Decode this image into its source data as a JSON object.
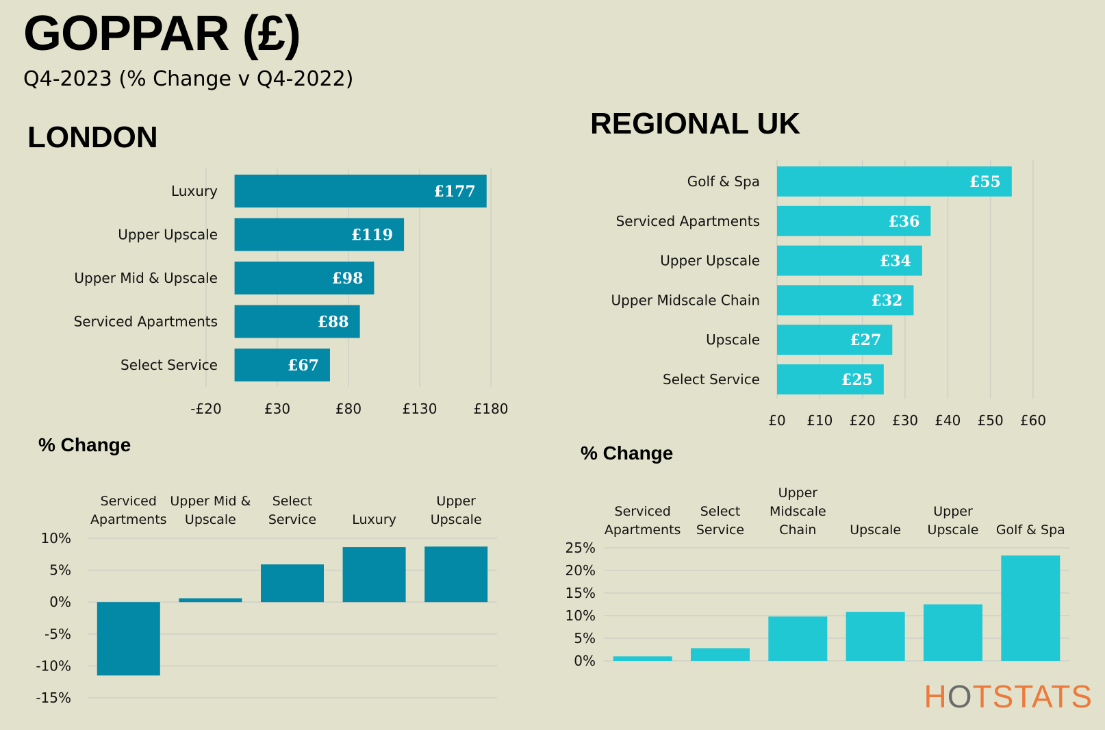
{
  "title": "GOPPAR (£)",
  "subtitle": "Q4-2023 (% Change v Q4-2022)",
  "london_title": "LONDON",
  "regional_title": "REGIONAL UK",
  "change_title": "% Change",
  "logo": {
    "pre": "H",
    "o": "O",
    "post": "TSTATS"
  },
  "colors": {
    "london": "#0388a6",
    "regional": "#20c8d4",
    "grid": "#cfcfc8",
    "logo": "#ec7a3c"
  },
  "chart_data": [
    {
      "id": "london_goppar",
      "type": "bar",
      "orientation": "horizontal",
      "categories": [
        "Luxury",
        "Upper Upscale",
        "Upper Mid & Upscale",
        "Serviced Apartments",
        "Select Service"
      ],
      "values": [
        177,
        119,
        98,
        88,
        67
      ],
      "data_labels": [
        "£177",
        "£119",
        "£98",
        "£88",
        "£67"
      ],
      "x_ticks": [
        -20,
        30,
        80,
        130,
        180
      ],
      "x_tick_labels": [
        "-£20",
        "£30",
        "£80",
        "£130",
        "£180"
      ],
      "xlim": [
        -20,
        180
      ]
    },
    {
      "id": "regional_goppar",
      "type": "bar",
      "orientation": "horizontal",
      "categories": [
        "Golf & Spa",
        "Serviced Apartments",
        "Upper Upscale",
        "Upper Midscale Chain",
        "Upscale",
        "Select Service"
      ],
      "values": [
        55,
        36,
        34,
        32,
        27,
        25
      ],
      "data_labels": [
        "£55",
        "£36",
        "£34",
        "£32",
        "£27",
        "£25"
      ],
      "x_ticks": [
        0,
        10,
        20,
        30,
        40,
        50,
        60
      ],
      "x_tick_labels": [
        "£0",
        "£10",
        "£20",
        "£30",
        "£40",
        "£50",
        "£60"
      ],
      "xlim": [
        0,
        60
      ]
    },
    {
      "id": "london_change",
      "type": "bar",
      "orientation": "vertical",
      "categories": [
        [
          "Serviced",
          "Apartments"
        ],
        [
          "Upper Mid &",
          "Upscale"
        ],
        [
          "Select",
          "Service"
        ],
        [
          "Luxury"
        ],
        [
          "Upper",
          "Upscale"
        ]
      ],
      "values": [
        -11.5,
        0.6,
        5.9,
        8.6,
        8.7
      ],
      "y_ticks": [
        10,
        5,
        0,
        -5,
        -10,
        -15
      ],
      "y_tick_labels": [
        "10%",
        "5%",
        "0%",
        "-5%",
        "-10%",
        "-15%"
      ],
      "ylim": [
        -15,
        10
      ]
    },
    {
      "id": "regional_change",
      "type": "bar",
      "orientation": "vertical",
      "categories": [
        [
          "Serviced",
          "Apartments"
        ],
        [
          "Select",
          "Service"
        ],
        [
          "Upper",
          "Midscale",
          "Chain"
        ],
        [
          "Upscale"
        ],
        [
          "Upper",
          "Upscale"
        ],
        [
          "Golf & Spa"
        ]
      ],
      "values": [
        1.0,
        2.8,
        9.8,
        10.8,
        12.5,
        23.3
      ],
      "y_ticks": [
        25,
        20,
        15,
        10,
        5,
        0
      ],
      "y_tick_labels": [
        "25%",
        "20%",
        "15%",
        "10%",
        "5%",
        "0%"
      ],
      "ylim": [
        0,
        25
      ]
    }
  ]
}
